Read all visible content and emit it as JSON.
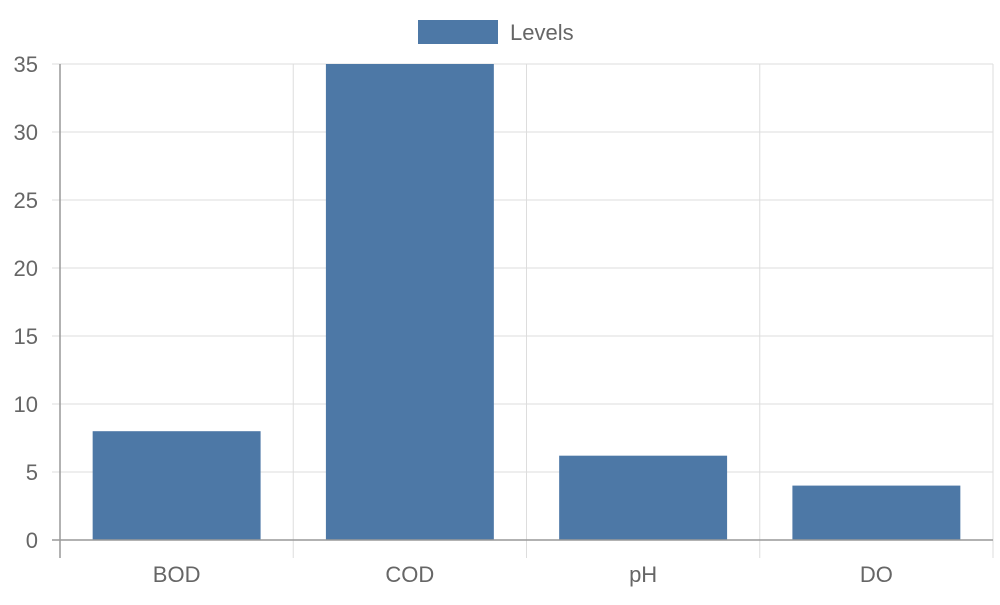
{
  "colors": {
    "bar": "#4d78a6",
    "grid": "#dddddd",
    "axis": "#999999",
    "text": "#666666",
    "background": "#ffffff"
  },
  "chart_data": {
    "type": "bar",
    "categories": [
      "BOD",
      "COD",
      "pH",
      "DO"
    ],
    "series": [
      {
        "name": "Levels",
        "values": [
          8,
          35,
          6.2,
          4
        ]
      }
    ],
    "ylim": [
      0,
      35
    ],
    "yticks": [
      0,
      5,
      10,
      15,
      20,
      25,
      30,
      35
    ],
    "grid": true,
    "legend": "top-center"
  }
}
